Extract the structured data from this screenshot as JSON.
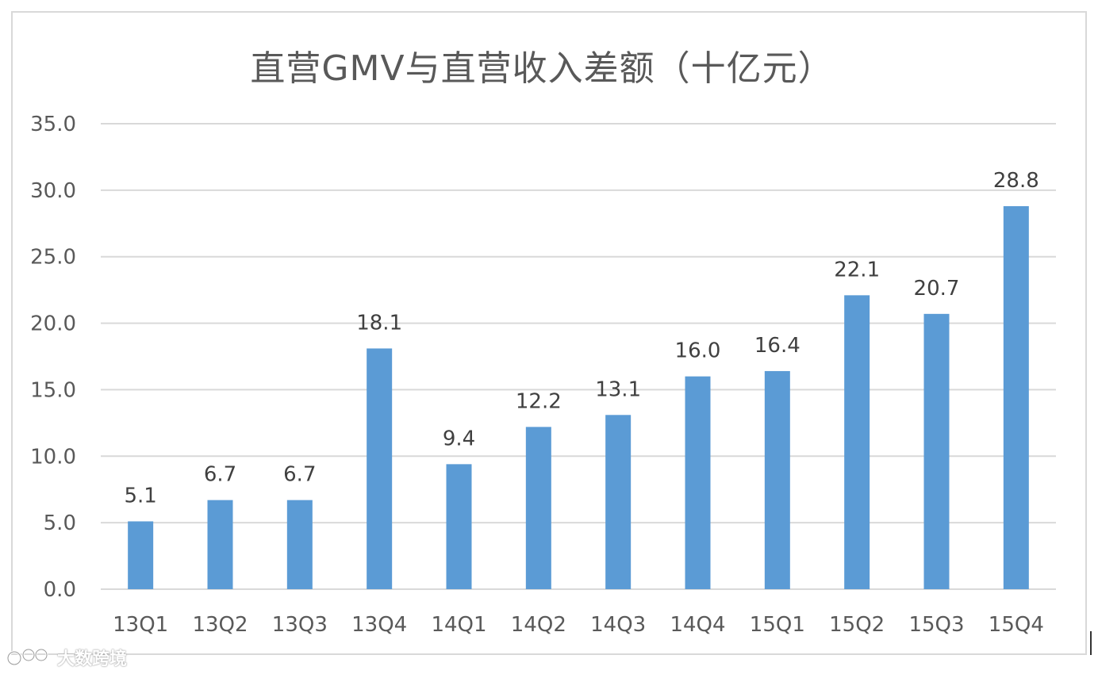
{
  "chart_data": {
    "type": "bar",
    "title": "直营GMV与直营收入差额（十亿元）",
    "categories": [
      "13Q1",
      "13Q2",
      "13Q3",
      "13Q4",
      "14Q1",
      "14Q2",
      "14Q3",
      "14Q4",
      "15Q1",
      "15Q2",
      "15Q3",
      "15Q4"
    ],
    "values": [
      5.1,
      6.7,
      6.7,
      18.1,
      9.4,
      12.2,
      13.1,
      16.0,
      16.4,
      22.1,
      20.7,
      28.8
    ],
    "value_labels": [
      "5.1",
      "6.7",
      "6.7",
      "18.1",
      "9.4",
      "12.2",
      "13.1",
      "16.0",
      "16.4",
      "22.1",
      "20.7",
      "28.8"
    ],
    "y_ticks": [
      0,
      5,
      10,
      15,
      20,
      25,
      30,
      35
    ],
    "y_tick_labels": [
      "0.0",
      "5.0",
      "10.0",
      "15.0",
      "20.0",
      "25.0",
      "30.0",
      "35.0"
    ],
    "ylim": [
      0,
      35
    ],
    "xlabel": "",
    "ylabel": "",
    "grid": true,
    "bar_color": "#5b9bd5",
    "grid_color": "#d9d9d9"
  },
  "watermark": {
    "text": "大数跨境"
  }
}
